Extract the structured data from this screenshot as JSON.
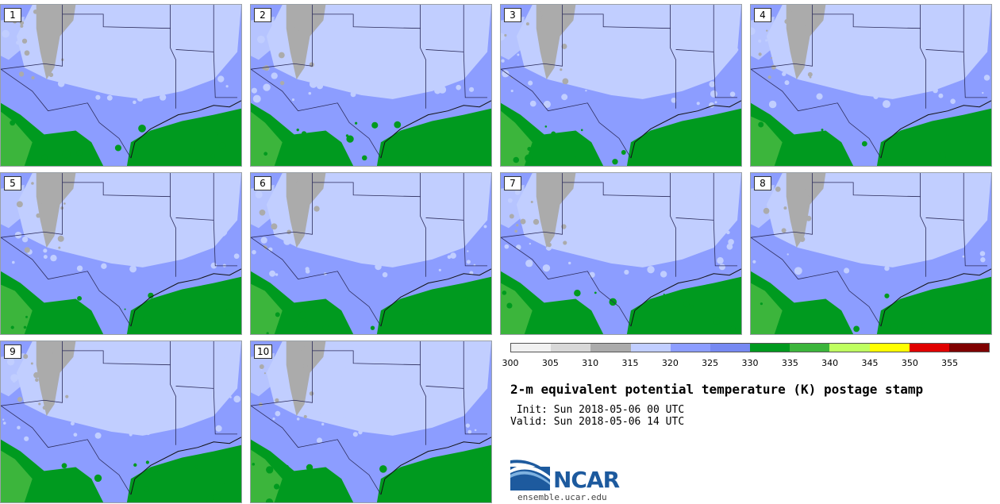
{
  "figure": {
    "title": "2-m equivalent potential temperature (K) postage stamp",
    "init_line": " Init: Sun 2018-05-06 00 UTC",
    "valid_line": "Valid: Sun 2018-05-06 14 UTC",
    "logo_text": "NCAR",
    "website": "ensemble.ucar.edu"
  },
  "members": [
    "1",
    "2",
    "3",
    "4",
    "5",
    "6",
    "7",
    "8",
    "9",
    "10"
  ],
  "colorbar": {
    "unit": "K",
    "colors": [
      "#f1f1f1",
      "#d8d8d8",
      "#ababab",
      "#c1ceff",
      "#8c9dff",
      "#7689f2",
      "#009a1f",
      "#3cb53c",
      "#bfff60",
      "#ffff00",
      "#e00000",
      "#7f0000"
    ],
    "tick_labels": [
      "300",
      "305",
      "310",
      "315",
      "320",
      "325",
      "330",
      "335",
      "340",
      "345",
      "350",
      "355"
    ]
  },
  "map_colors": {
    "cool_light": "#c1ceff",
    "cool_mid": "#8c9dff",
    "gray": "#ababab",
    "green": "#009a1f",
    "green_light": "#3cb53c",
    "border": "#2b2b5a"
  }
}
